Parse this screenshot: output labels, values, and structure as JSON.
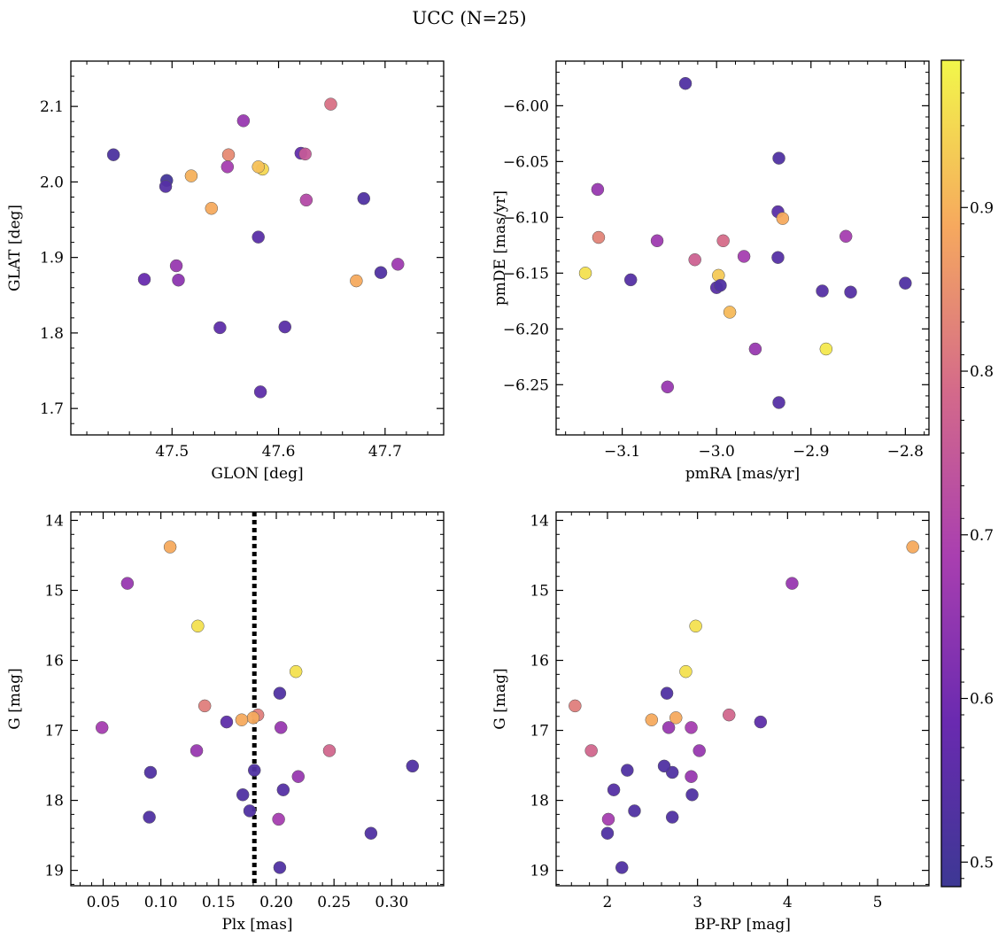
{
  "figure_title": "UCC (N=25)",
  "colors": {
    "colormap": "plasma",
    "vline_color": "#000000",
    "point_edge": "#555555"
  },
  "colorbar": {
    "range": [
      0.485,
      0.99
    ],
    "ticks": [
      0.5,
      0.6,
      0.7,
      0.8,
      0.9
    ],
    "tick_labels": [
      "0.5",
      "0.6",
      "0.7",
      "0.8",
      "0.9"
    ]
  },
  "chart_data": [
    {
      "id": "glon-glat",
      "type": "scatter",
      "xlabel": "GLON [deg]",
      "ylabel": "GLAT [deg]",
      "xlim": [
        47.405,
        47.755
      ],
      "ylim": [
        1.665,
        2.16
      ],
      "xticks": [
        47.5,
        47.6,
        47.7
      ],
      "xtick_labels": [
        "47.5",
        "47.6",
        "47.7"
      ],
      "yticks": [
        1.7,
        1.8,
        1.9,
        2.0,
        2.1
      ],
      "ytick_labels": [
        "1.7",
        "1.8",
        "1.9",
        "2.0",
        "2.1"
      ],
      "x": [
        47.445,
        47.495,
        47.494,
        47.474,
        47.504,
        47.506,
        47.518,
        47.537,
        47.545,
        47.553,
        47.552,
        47.567,
        47.581,
        47.583,
        47.585,
        47.581,
        47.606,
        47.621,
        47.625,
        47.626,
        47.649,
        47.673,
        47.68,
        47.696,
        47.712
      ],
      "y": [
        2.036,
        2.002,
        1.994,
        1.871,
        1.889,
        1.87,
        2.008,
        1.965,
        1.807,
        2.036,
        2.02,
        2.081,
        1.927,
        1.722,
        2.017,
        2.02,
        1.808,
        2.038,
        2.037,
        1.976,
        2.103,
        1.869,
        1.978,
        1.88,
        1.891
      ],
      "c": [
        0.52,
        0.5,
        0.54,
        0.58,
        0.66,
        0.64,
        0.9,
        0.89,
        0.56,
        0.84,
        0.68,
        0.66,
        0.55,
        0.56,
        0.95,
        0.92,
        0.55,
        0.57,
        0.75,
        0.71,
        0.8,
        0.89,
        0.53,
        0.53,
        0.67
      ]
    },
    {
      "id": "pmra-pmde",
      "type": "scatter",
      "xlabel": "pmRA [mas/yr]",
      "ylabel": "pmDE [mas/yr]",
      "xlim": [
        -3.17,
        -2.775
      ],
      "ylim": [
        -6.295,
        -5.96
      ],
      "xticks": [
        -3.1,
        -3.0,
        -2.9,
        -2.8
      ],
      "xtick_labels": [
        "−3.1",
        "−3.0",
        "−2.9",
        "−2.8"
      ],
      "yticks": [
        -6.25,
        -6.2,
        -6.15,
        -6.1,
        -6.05,
        -6.0
      ],
      "ytick_labels": [
        "−6.25",
        "−6.20",
        "−6.15",
        "−6.10",
        "−6.05",
        "−6.00"
      ],
      "x": [
        -3.033,
        -2.934,
        -3.126,
        -3.125,
        -2.935,
        -2.93,
        -3.063,
        -3.023,
        -2.993,
        -2.971,
        -2.935,
        -2.863,
        -3.139,
        -3.091,
        -2.998,
        -3.0,
        -2.996,
        -2.986,
        -2.888,
        -2.858,
        -2.8,
        -2.959,
        -2.884,
        -3.052,
        -2.934
      ],
      "y": [
        -5.98,
        -6.047,
        -6.075,
        -6.118,
        -6.095,
        -6.101,
        -6.121,
        -6.138,
        -6.121,
        -6.135,
        -6.136,
        -6.117,
        -6.15,
        -6.156,
        -6.152,
        -6.163,
        -6.161,
        -6.185,
        -6.166,
        -6.167,
        -6.159,
        -6.218,
        -6.218,
        -6.252,
        -6.266
      ],
      "c": [
        0.53,
        0.53,
        0.66,
        0.83,
        0.55,
        0.89,
        0.67,
        0.77,
        0.79,
        0.68,
        0.54,
        0.68,
        0.96,
        0.54,
        0.93,
        0.55,
        0.53,
        0.91,
        0.54,
        0.54,
        0.53,
        0.66,
        0.97,
        0.66,
        0.54
      ]
    },
    {
      "id": "plx-g",
      "type": "scatter",
      "xlabel": "Plx [mas]",
      "ylabel": "G [mag]",
      "xlim": [
        0.022,
        0.345
      ],
      "ylim": [
        19.22,
        13.88
      ],
      "xticks": [
        0.05,
        0.1,
        0.15,
        0.2,
        0.25,
        0.3
      ],
      "xtick_labels": [
        "0.05",
        "0.10",
        "0.15",
        "0.20",
        "0.25",
        "0.30"
      ],
      "yticks": [
        14,
        15,
        16,
        17,
        18,
        19
      ],
      "ytick_labels": [
        "14",
        "15",
        "16",
        "17",
        "18",
        "19"
      ],
      "vline_x": 0.181,
      "x": [
        0.108,
        0.071,
        0.132,
        0.217,
        0.203,
        0.138,
        0.184,
        0.18,
        0.17,
        0.157,
        0.204,
        0.049,
        0.131,
        0.246,
        0.091,
        0.181,
        0.219,
        0.318,
        0.206,
        0.171,
        0.177,
        0.09,
        0.202,
        0.282,
        0.203
      ],
      "y": [
        14.38,
        14.9,
        15.51,
        16.16,
        16.47,
        16.65,
        16.78,
        16.82,
        16.85,
        16.88,
        16.96,
        16.96,
        17.29,
        17.29,
        17.6,
        17.57,
        17.66,
        17.51,
        17.85,
        17.92,
        18.15,
        18.24,
        18.27,
        18.47,
        18.96
      ],
      "c": [
        0.89,
        0.66,
        0.96,
        0.96,
        0.53,
        0.82,
        0.82,
        0.89,
        0.89,
        0.56,
        0.66,
        0.68,
        0.66,
        0.78,
        0.53,
        0.53,
        0.66,
        0.53,
        0.54,
        0.53,
        0.53,
        0.53,
        0.68,
        0.53,
        0.53
      ]
    },
    {
      "id": "bprp-g",
      "type": "scatter",
      "xlabel": "BP-RP [mag]",
      "ylabel": "G [mag]",
      "xlim": [
        1.43,
        5.57
      ],
      "ylim": [
        19.22,
        13.88
      ],
      "xticks": [
        2,
        3,
        4,
        5
      ],
      "xtick_labels": [
        "2",
        "3",
        "4",
        "5"
      ],
      "yticks": [
        14,
        15,
        16,
        17,
        18,
        19
      ],
      "ytick_labels": [
        "14",
        "15",
        "16",
        "17",
        "18",
        "19"
      ],
      "x": [
        5.39,
        4.05,
        2.98,
        2.87,
        2.66,
        1.64,
        3.35,
        2.76,
        2.49,
        3.7,
        2.68,
        2.93,
        1.82,
        3.02,
        2.72,
        2.22,
        2.93,
        2.63,
        2.07,
        2.94,
        2.3,
        2.72,
        2.01,
        2.0,
        2.16
      ],
      "y": [
        14.38,
        14.9,
        15.51,
        16.16,
        16.47,
        16.65,
        16.78,
        16.82,
        16.85,
        16.88,
        16.96,
        16.96,
        17.29,
        17.29,
        17.6,
        17.57,
        17.66,
        17.51,
        17.85,
        17.92,
        18.15,
        18.24,
        18.27,
        18.47,
        18.96
      ],
      "c": [
        0.89,
        0.66,
        0.96,
        0.96,
        0.53,
        0.82,
        0.78,
        0.89,
        0.89,
        0.56,
        0.66,
        0.68,
        0.78,
        0.66,
        0.53,
        0.53,
        0.66,
        0.53,
        0.54,
        0.53,
        0.53,
        0.53,
        0.68,
        0.53,
        0.53
      ]
    }
  ]
}
